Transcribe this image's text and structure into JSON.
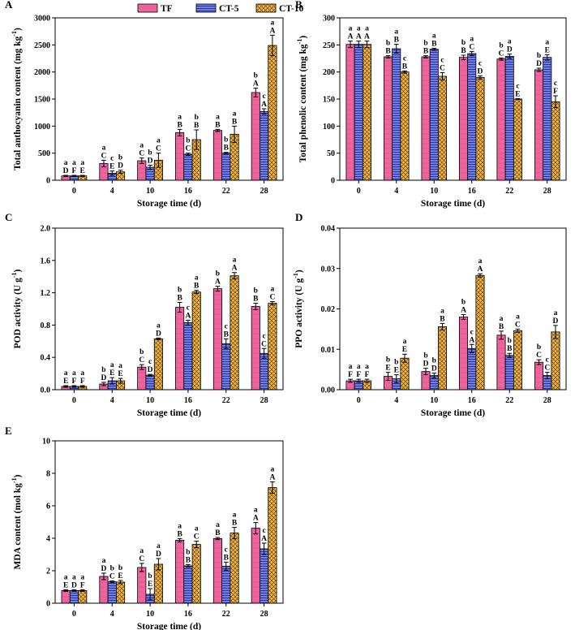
{
  "legend": [
    "TF",
    "CT-5",
    "CT-10"
  ],
  "colors": {
    "TF": "#F0649E",
    "CT-5": "#6C7EE6",
    "CT-10": "#F0B545",
    "stroke": "#000000"
  },
  "chart_data": [
    {
      "panel": "A",
      "type": "bar",
      "ylabel": "Total anthocyanin content (mg kg",
      "ysup": "-1",
      "xlabel": "Storage time (d)",
      "categories": [
        "0",
        "4",
        "10",
        "16",
        "22",
        "28"
      ],
      "ylim": [
        0,
        3000
      ],
      "yticks": [
        "0",
        "500",
        "1000",
        "1500",
        "2000",
        "2500",
        "3000"
      ],
      "series": [
        {
          "name": "TF",
          "values": [
            80,
            310,
            360,
            880,
            920,
            1620
          ],
          "errors": [
            10,
            60,
            50,
            60,
            20,
            80
          ]
        },
        {
          "name": "CT-5",
          "values": [
            80,
            130,
            240,
            480,
            500,
            1270
          ],
          "errors": [
            10,
            40,
            40,
            20,
            15,
            50
          ]
        },
        {
          "name": "CT-10",
          "values": [
            80,
            155,
            370,
            750,
            850,
            2490
          ],
          "errors": [
            10,
            30,
            130,
            180,
            150,
            190
          ]
        }
      ],
      "letters": [
        [
          [
            "a",
            "D"
          ],
          [
            "a",
            "F"
          ],
          [
            "a",
            "E"
          ]
        ],
        [
          [
            "a",
            "C"
          ],
          [
            "c",
            "E"
          ],
          [
            "b",
            "D"
          ]
        ],
        [
          [
            "a",
            "C"
          ],
          [
            "b",
            "D"
          ],
          [
            "a",
            "C"
          ]
        ],
        [
          [
            "a",
            "B"
          ],
          [
            "b",
            "C"
          ],
          [
            "b",
            "B"
          ]
        ],
        [
          [
            "a",
            "B"
          ],
          [
            "b",
            "B"
          ],
          [
            "a",
            "B"
          ]
        ],
        [
          [
            "b",
            "A"
          ],
          [
            "c",
            "A"
          ],
          [
            "a",
            "A"
          ]
        ]
      ]
    },
    {
      "panel": "B",
      "type": "bar",
      "ylabel": "Total phenolic content (mg kg",
      "ysup": "-1",
      "xlabel": "Storage time (d)",
      "categories": [
        "0",
        "4",
        "10",
        "16",
        "22",
        "28"
      ],
      "ylim": [
        0,
        300
      ],
      "yticks": [
        "0",
        "50",
        "100",
        "150",
        "200",
        "250",
        "300"
      ],
      "series": [
        {
          "name": "TF",
          "values": [
            251,
            228,
            228,
            227,
            224,
            204
          ],
          "errors": [
            6,
            2,
            2,
            4,
            2,
            3
          ]
        },
        {
          "name": "CT-5",
          "values": [
            251,
            243,
            242,
            234,
            229,
            227
          ],
          "errors": [
            6,
            8,
            2,
            4,
            4,
            5
          ]
        },
        {
          "name": "CT-10",
          "values": [
            251,
            200,
            192,
            190,
            150,
            145
          ],
          "errors": [
            6,
            2,
            7,
            3,
            1,
            11
          ]
        }
      ],
      "letters": [
        [
          [
            "a",
            "A"
          ],
          [
            "a",
            "A"
          ],
          [
            "a",
            "A"
          ]
        ],
        [
          [
            "b",
            "B"
          ],
          [
            "a",
            "B"
          ],
          [
            "c",
            "B"
          ]
        ],
        [
          [
            "b",
            "B"
          ],
          [
            "a",
            "B"
          ],
          [
            "c",
            "C"
          ]
        ],
        [
          [
            "b",
            "B"
          ],
          [
            "a",
            "C"
          ],
          [
            "c",
            "D"
          ]
        ],
        [
          [
            "b",
            "C"
          ],
          [
            "a",
            "D"
          ],
          [
            "c",
            "E"
          ]
        ],
        [
          [
            "b",
            "D"
          ],
          [
            "a",
            "E"
          ],
          [
            "c",
            "F"
          ]
        ]
      ]
    },
    {
      "panel": "C",
      "type": "bar",
      "ylabel": "POD activity (U g",
      "ysup": "-1",
      "xlabel": "Storage time (d)",
      "categories": [
        "0",
        "4",
        "10",
        "16",
        "22",
        "28"
      ],
      "ylim": [
        0,
        2.0
      ],
      "yticks": [
        "0.0",
        "0.4",
        "0.8",
        "1.2",
        "1.6",
        "2.0"
      ],
      "series": [
        {
          "name": "TF",
          "values": [
            0.04,
            0.07,
            0.28,
            1.02,
            1.25,
            1.03
          ],
          "errors": [
            0.01,
            0.02,
            0.03,
            0.06,
            0.03,
            0.04
          ]
        },
        {
          "name": "CT-5",
          "values": [
            0.04,
            0.11,
            0.18,
            0.83,
            0.57,
            0.45
          ],
          "errors": [
            0.01,
            0.04,
            0.01,
            0.03,
            0.06,
            0.06
          ]
        },
        {
          "name": "CT-10",
          "values": [
            0.04,
            0.11,
            0.63,
            1.21,
            1.41,
            1.07
          ],
          "errors": [
            0.01,
            0.03,
            0.01,
            0.02,
            0.04,
            0.02
          ]
        }
      ],
      "letters": [
        [
          [
            "a",
            "E"
          ],
          [
            "a",
            "F"
          ],
          [
            "a",
            "F"
          ]
        ],
        [
          [
            "b",
            "D"
          ],
          [
            "a",
            "E"
          ],
          [
            "a",
            "E"
          ]
        ],
        [
          [
            "b",
            "C"
          ],
          [
            "c",
            "D"
          ],
          [
            "a",
            "D"
          ]
        ],
        [
          [
            "b",
            "B"
          ],
          [
            "c",
            "A"
          ],
          [
            "a",
            "B"
          ]
        ],
        [
          [
            "b",
            "A"
          ],
          [
            "c",
            "B"
          ],
          [
            "a",
            "A"
          ]
        ],
        [
          [
            "b",
            "B"
          ],
          [
            "c",
            "C"
          ],
          [
            "a",
            "C"
          ]
        ]
      ]
    },
    {
      "panel": "D",
      "type": "bar",
      "ylabel": "PPO activity (U g",
      "ysup": "-1",
      "xlabel": "Storage time (d)",
      "categories": [
        "0",
        "4",
        "10",
        "16",
        "22",
        "28"
      ],
      "ylim": [
        0,
        0.04
      ],
      "yticks": [
        "0.00",
        "0.01",
        "0.02",
        "0.03",
        "0.04"
      ],
      "series": [
        {
          "name": "TF",
          "values": [
            0.0022,
            0.0033,
            0.0045,
            0.018,
            0.0135,
            0.0068
          ],
          "errors": [
            0.0004,
            0.001,
            0.0008,
            0.0006,
            0.001,
            0.0006
          ]
        },
        {
          "name": "CT-5",
          "values": [
            0.0022,
            0.0027,
            0.0035,
            0.0102,
            0.0085,
            0.0035
          ],
          "errors": [
            0.0004,
            0.001,
            0.0006,
            0.001,
            0.0005,
            0.0008
          ]
        },
        {
          "name": "CT-10",
          "values": [
            0.0022,
            0.0078,
            0.0156,
            0.0283,
            0.0146,
            0.0143
          ],
          "errors": [
            0.0004,
            0.001,
            0.0008,
            0.0004,
            0.0004,
            0.0016
          ]
        }
      ],
      "letters": [
        [
          [
            "a",
            "F"
          ],
          [
            "a",
            "F"
          ],
          [
            "a",
            "F"
          ]
        ],
        [
          [
            "b",
            "E"
          ],
          [
            "b",
            "E"
          ],
          [
            "a",
            "E"
          ]
        ],
        [
          [
            "b",
            "D"
          ],
          [
            "b",
            "D"
          ],
          [
            "a",
            "B"
          ]
        ],
        [
          [
            "b",
            "A"
          ],
          [
            "c",
            "A"
          ],
          [
            "a",
            "A"
          ]
        ],
        [
          [
            "a",
            "B"
          ],
          [
            "b",
            "B"
          ],
          [
            "a",
            "C"
          ]
        ],
        [
          [
            "b",
            "C"
          ],
          [
            "c",
            "C"
          ],
          [
            "a",
            "D"
          ]
        ]
      ]
    },
    {
      "panel": "E",
      "type": "bar",
      "ylabel": "MDA content (mol kg",
      "ysup": "-1",
      "xlabel": "Storage time (d)",
      "categories": [
        "0",
        "4",
        "10",
        "16",
        "22",
        "28"
      ],
      "ylim": [
        0,
        10
      ],
      "yticks": [
        "0",
        "2",
        "4",
        "6",
        "8",
        "10"
      ],
      "series": [
        {
          "name": "TF",
          "values": [
            0.78,
            1.65,
            2.2,
            3.88,
            3.98,
            4.62
          ],
          "errors": [
            0.05,
            0.2,
            0.25,
            0.1,
            0.07,
            0.35
          ]
        },
        {
          "name": "CT-5",
          "values": [
            0.78,
            1.32,
            0.55,
            2.3,
            2.28,
            3.35
          ],
          "errors": [
            0.05,
            0.05,
            0.35,
            0.08,
            0.25,
            0.35
          ]
        },
        {
          "name": "CT-10",
          "values": [
            0.78,
            1.3,
            2.4,
            3.62,
            4.32,
            7.12
          ],
          "errors": [
            0.05,
            0.1,
            0.35,
            0.2,
            0.35,
            0.35
          ]
        }
      ],
      "letters": [
        [
          [
            "a",
            "E"
          ],
          [
            "a",
            "D"
          ],
          [
            "a",
            "F"
          ]
        ],
        [
          [
            "a",
            "D"
          ],
          [
            "b",
            "C"
          ],
          [
            "b",
            "E"
          ]
        ],
        [
          [
            "a",
            "C"
          ],
          [
            "b",
            "E"
          ],
          [
            "a",
            "D"
          ]
        ],
        [
          [
            "a",
            "B"
          ],
          [
            "b",
            "B"
          ],
          [
            "a",
            "C"
          ]
        ],
        [
          [
            "a",
            "B"
          ],
          [
            "c",
            "B"
          ],
          [
            "a",
            "B"
          ]
        ],
        [
          [
            "a",
            "A"
          ],
          [
            "c",
            "A"
          ],
          [
            "a",
            "A"
          ]
        ]
      ]
    }
  ]
}
